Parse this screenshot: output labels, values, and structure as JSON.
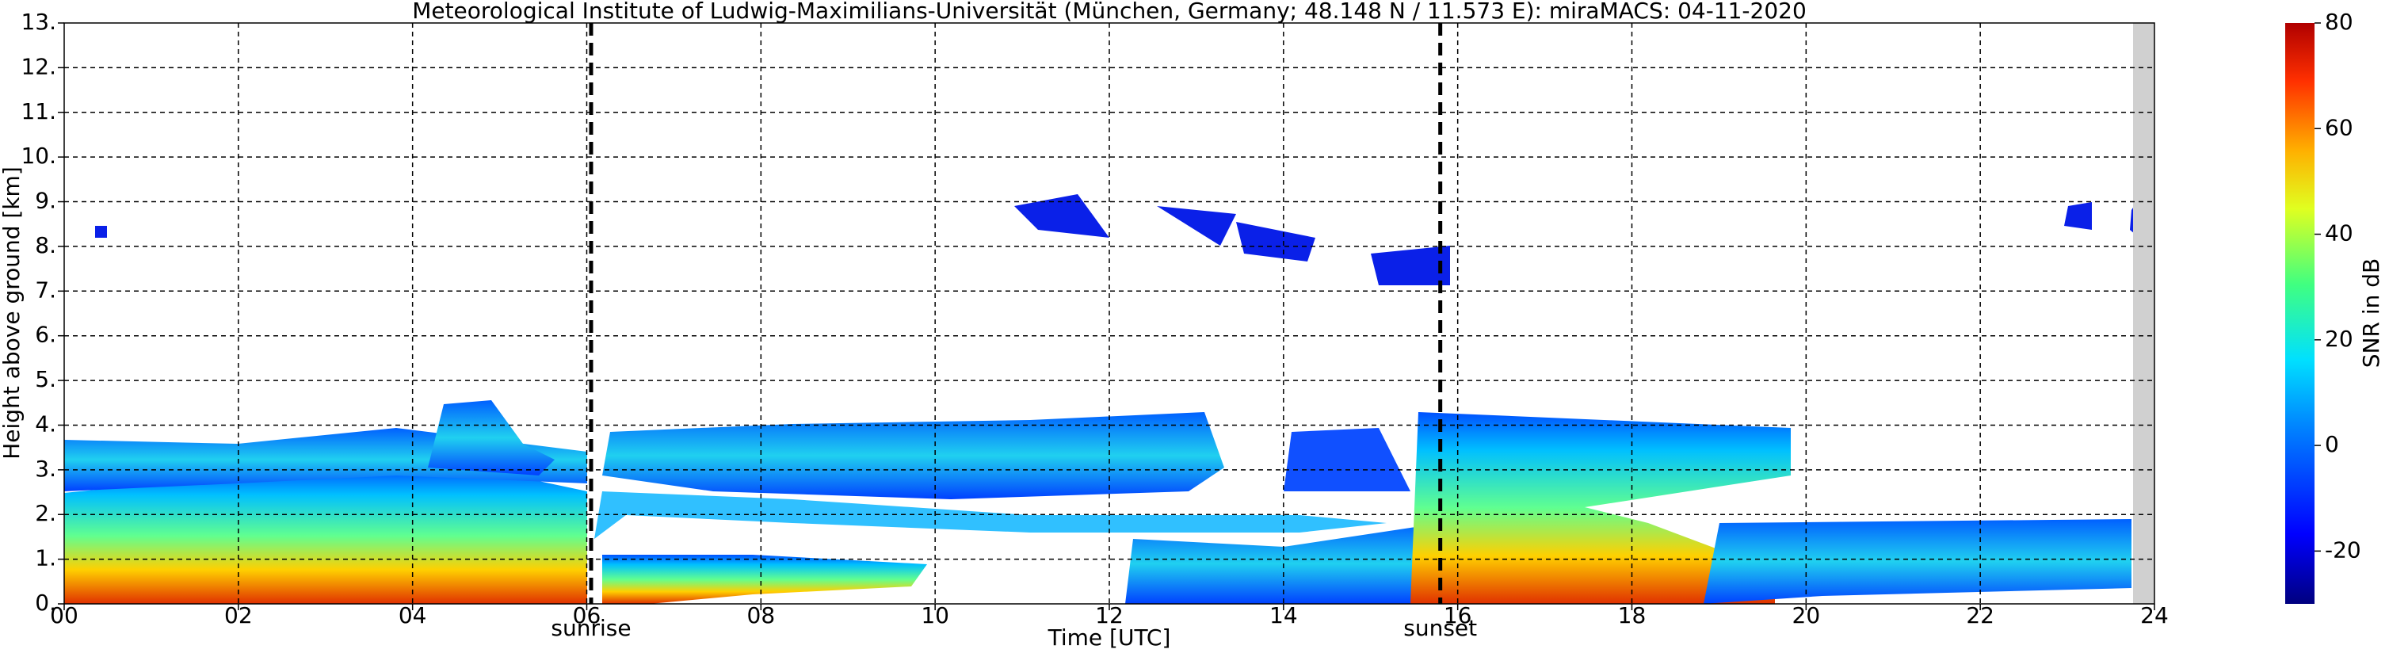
{
  "chart_data": {
    "type": "heatmap",
    "title": "Meteorological Institute of Ludwig-Maximilians-Universität (München, Germany; 48.148 N / 11.573 E):    miraMACS: 04-11-2020",
    "xlabel": "Time [UTC]",
    "ylabel": "Height above ground [km]",
    "xlim": [
      0,
      24
    ],
    "xticks": [
      {
        "value": 0,
        "label": "00"
      },
      {
        "value": 2,
        "label": "02"
      },
      {
        "value": 4,
        "label": "04"
      },
      {
        "value": 6,
        "label": "06"
      },
      {
        "value": 8,
        "label": "08"
      },
      10,
      12,
      14,
      16,
      18,
      20,
      22,
      24
    ],
    "ylim": [
      0,
      13
    ],
    "yticks": [
      {
        "value": 0,
        "label": "0."
      },
      {
        "value": 1,
        "label": "1."
      },
      {
        "value": 2,
        "label": "2."
      },
      {
        "value": 3,
        "label": "3."
      },
      {
        "value": 4,
        "label": "4."
      },
      {
        "value": 5,
        "label": "5."
      },
      {
        "value": 6,
        "label": "6."
      },
      {
        "value": 7,
        "label": "7."
      },
      {
        "value": 8,
        "label": "8."
      },
      {
        "value": 9,
        "label": "9."
      },
      {
        "value": 10,
        "label": "10."
      },
      {
        "value": 11,
        "label": "11."
      },
      {
        "value": 12,
        "label": "12."
      },
      {
        "value": 13,
        "label": "13."
      }
    ],
    "grid": true,
    "annotations": [
      {
        "x": 6.05,
        "text": "sunrise"
      },
      {
        "x": 15.8,
        "text": "sunset"
      }
    ],
    "colorbar": {
      "label": "SNR in dB",
      "lim": [
        -30,
        80
      ],
      "ticks": [
        -20,
        0,
        20,
        40,
        60,
        80
      ]
    }
  }
}
